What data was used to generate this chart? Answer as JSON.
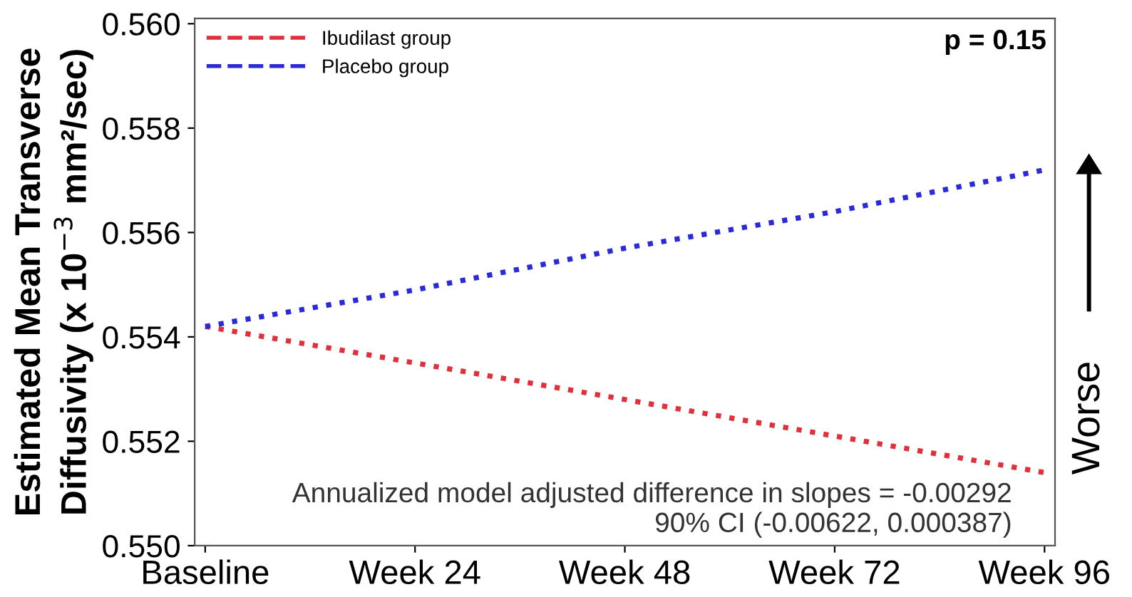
{
  "chart_data": {
    "type": "line",
    "ylabel": "Estimated Mean Transverse\nDiffusivity (x 10$^{−3}$ mm²/sec)",
    "categories": [
      "Baseline",
      "Week 24",
      "Week 48",
      "Week 72",
      "Week 96"
    ],
    "series": [
      {
        "name": "Ibudilast group",
        "color": "#e0303c",
        "values": [
          0.5542,
          0.5535,
          0.5528,
          0.5521,
          0.5514
        ]
      },
      {
        "name": "Placebo group",
        "color": "#2a2ad8",
        "values": [
          0.5542,
          0.5549,
          0.5557,
          0.5564,
          0.5572
        ]
      }
    ],
    "ylim": [
      0.55,
      0.5601
    ],
    "yticks": [
      {
        "value": 0.55,
        "label": "0.550"
      },
      {
        "value": 0.552,
        "label": "0.552"
      },
      {
        "value": 0.554,
        "label": "0.554"
      },
      {
        "value": 0.556,
        "label": "0.556"
      },
      {
        "value": 0.558,
        "label": "0.558"
      },
      {
        "value": 0.56,
        "label": "0.560"
      }
    ],
    "line_style": "dotted",
    "marker": "none",
    "grid": false,
    "legend": "top left",
    "annotations": [
      "p = 0.15",
      "Annualized model adjusted difference in slopes = -0.00292\n90% CI (-0.00622, 0.000387)",
      "Worse"
    ]
  }
}
